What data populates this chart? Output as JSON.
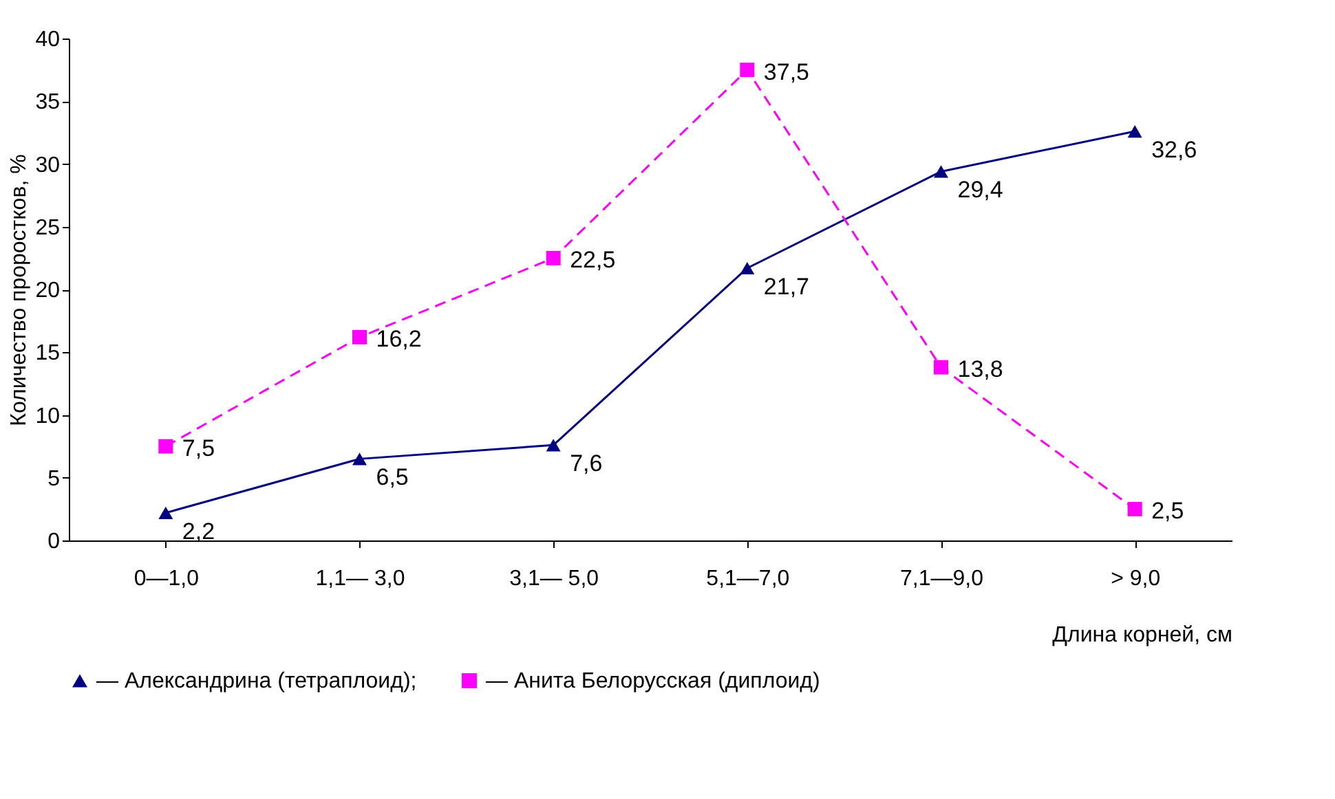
{
  "chart_data": {
    "type": "line",
    "xlabel": "Длина корней, см",
    "ylabel": "Количество проростков, %",
    "categories": [
      "0—1,0",
      "1,1— 3,0",
      "3,1— 5,0",
      "5,1—7,0",
      "7,1—9,0",
      "> 9,0"
    ],
    "series": [
      {
        "name": "— Александрина (тетраплоид);",
        "color": "#000080",
        "values": [
          2.2,
          6.5,
          7.6,
          21.7,
          29.4,
          32.6
        ],
        "value_labels": [
          "2,2",
          "6,5",
          "7,6",
          "21,7",
          "29,4",
          "32,6"
        ],
        "marker": "triangle",
        "line_style": "solid"
      },
      {
        "name": "— Анита Белорусская (диплоид)",
        "color": "#ff00ff",
        "values": [
          7.5,
          16.2,
          22.5,
          37.5,
          13.8,
          2.5
        ],
        "value_labels": [
          "7,5",
          "16,2",
          "22,5",
          "37,5",
          "13,8",
          "2,5"
        ],
        "marker": "square",
        "line_style": "dashed"
      }
    ],
    "ylim": [
      0,
      40
    ],
    "yticks": [
      0,
      5,
      10,
      15,
      20,
      25,
      30,
      35,
      40
    ],
    "grid": false,
    "legend": "bottom"
  }
}
